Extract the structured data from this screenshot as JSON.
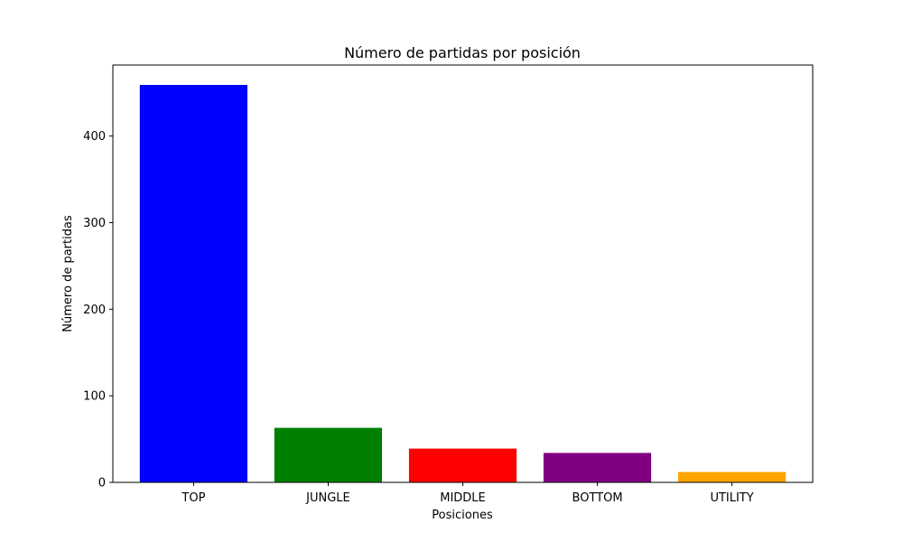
{
  "chart_data": {
    "type": "bar",
    "title": "Número de partidas por posición",
    "xlabel": "Posiciones",
    "ylabel": "Número de partidas",
    "categories": [
      "TOP",
      "JUNGLE",
      "MIDDLE",
      "BOTTOM",
      "UTILITY"
    ],
    "values": [
      459,
      63,
      39,
      34,
      12
    ],
    "colors": [
      "#0000ff",
      "#008000",
      "#ff0000",
      "#800080",
      "#ffa500"
    ],
    "ylim": [
      0,
      482
    ],
    "yticks": [
      0,
      100,
      200,
      300,
      400
    ],
    "grid": false
  }
}
